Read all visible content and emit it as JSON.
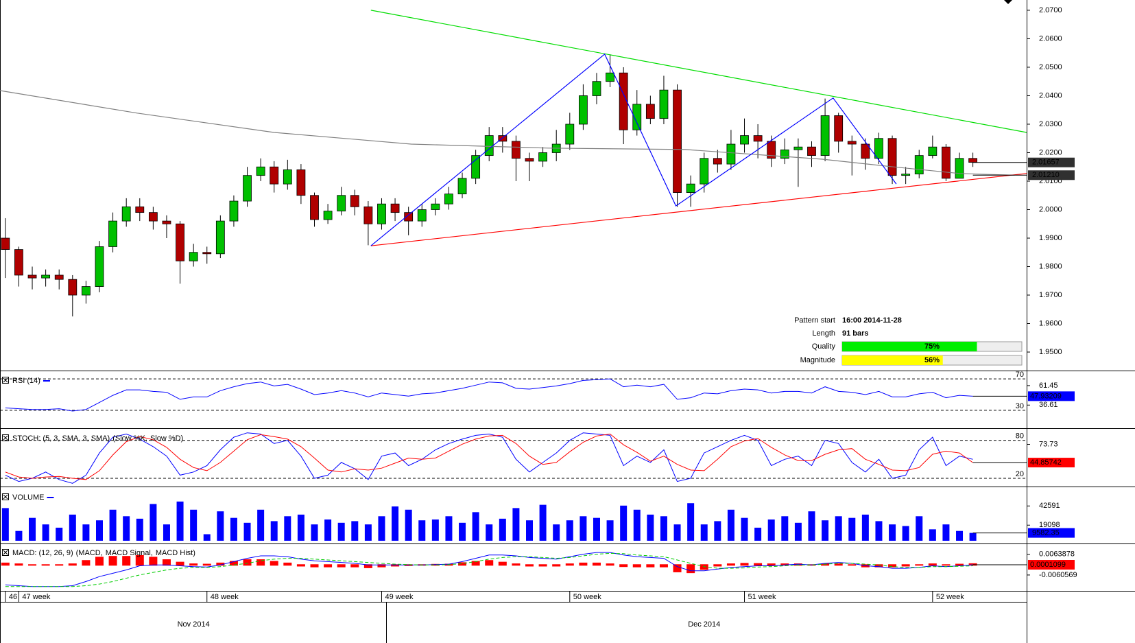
{
  "chart_data": [
    {
      "type": "candlestick",
      "categories": [
        "46",
        "47 week",
        null,
        null,
        null,
        null,
        null,
        null,
        null,
        null,
        null,
        null,
        null,
        null,
        null,
        "48 week",
        null,
        null,
        null,
        null,
        null,
        null,
        null,
        null,
        null,
        null,
        null,
        null,
        "49 week",
        null,
        null,
        null,
        null,
        null,
        null,
        null,
        null,
        null,
        null,
        null,
        null,
        null,
        "50 week",
        null,
        null,
        null,
        null,
        null,
        null,
        null,
        null,
        null,
        null,
        null,
        null,
        "51 week",
        null,
        null,
        null,
        null,
        null,
        null,
        null,
        null,
        null,
        null,
        null,
        null,
        null,
        "52 week",
        null,
        null,
        null
      ],
      "months": [
        null,
        null,
        null,
        null,
        null,
        null,
        null,
        null,
        null,
        null,
        null,
        null,
        null,
        null,
        "Nov 2014",
        null,
        null,
        null,
        null,
        null,
        null,
        null,
        null,
        null,
        null,
        null,
        null,
        null,
        null,
        null,
        null,
        null,
        null,
        null,
        null,
        null,
        null,
        null,
        null,
        null,
        null,
        null,
        null,
        null,
        null,
        null,
        null,
        null,
        null,
        null,
        null,
        null,
        "Dec 2014",
        null,
        null,
        null,
        null,
        null,
        null,
        null,
        null,
        null,
        null,
        null,
        null,
        null,
        null,
        null,
        null,
        null,
        null,
        null,
        null
      ],
      "open": [
        1.99,
        1.986,
        1.977,
        1.976,
        1.977,
        1.9755,
        1.97,
        1.973,
        1.987,
        1.996,
        2.001,
        1.999,
        1.996,
        1.995,
        1.982,
        1.985,
        1.9845,
        1.996,
        2.003,
        2.012,
        2.015,
        2.009,
        2.014,
        2.005,
        1.9965,
        1.9995,
        2.005,
        2.001,
        1.995,
        2.002,
        1.999,
        1.996,
        2.0,
        2.002,
        2.0055,
        2.011,
        2.019,
        2.026,
        2.024,
        2.018,
        2.017,
        2.02,
        2.023,
        2.03,
        2.04,
        2.045,
        2.048,
        2.028,
        2.037,
        2.032,
        2.042,
        2.006,
        2.009,
        2.018,
        2.016,
        2.023,
        2.026,
        2.024,
        2.018,
        2.021,
        2.022,
        2.019,
        2.033,
        2.024,
        2.023,
        2.018,
        2.025,
        2.012,
        2.0125,
        2.019,
        2.022,
        2.011,
        2.018
      ],
      "high": [
        1.997,
        1.987,
        1.98,
        1.979,
        1.979,
        1.977,
        1.975,
        1.989,
        1.999,
        2.004,
        2.004,
        2.001,
        1.998,
        1.996,
        1.988,
        1.987,
        1.998,
        2.005,
        2.015,
        2.018,
        2.017,
        2.0175,
        2.016,
        2.006,
        2.002,
        2.008,
        2.007,
        2.003,
        2.004,
        2.004,
        2.001,
        2.002,
        2.004,
        2.008,
        2.013,
        2.021,
        2.029,
        2.029,
        2.026,
        2.02,
        2.022,
        2.028,
        2.034,
        2.044,
        2.048,
        2.0545,
        2.05,
        2.042,
        2.04,
        2.047,
        2.044,
        2.012,
        2.02,
        2.021,
        2.028,
        2.032,
        2.03,
        2.026,
        2.025,
        2.025,
        2.024,
        2.039,
        2.034,
        2.026,
        2.025,
        2.027,
        2.026,
        2.015,
        2.021,
        2.026,
        2.023,
        2.02,
        2.02
      ],
      "low": [
        1.976,
        1.973,
        1.972,
        1.973,
        1.972,
        1.9625,
        1.967,
        1.971,
        1.985,
        1.994,
        1.996,
        1.993,
        1.99,
        1.974,
        1.98,
        1.981,
        1.983,
        1.994,
        2.001,
        2.01,
        2.006,
        2.007,
        2.002,
        1.994,
        1.995,
        1.998,
        1.998,
        1.9875,
        1.993,
        1.996,
        1.991,
        1.994,
        1.998,
        2.0,
        2.004,
        2.009,
        2.017,
        2.02,
        2.01,
        2.01,
        2.015,
        2.017,
        2.021,
        2.028,
        2.037,
        2.043,
        2.023,
        2.026,
        2.03,
        2.03,
        2.001,
        2.001,
        2.006,
        2.013,
        2.014,
        2.02,
        2.018,
        2.015,
        2.016,
        2.008,
        2.015,
        2.017,
        2.02,
        2.012,
        2.014,
        2.016,
        2.009,
        2.009,
        2.011,
        2.018,
        2.01,
        2.011,
        2.015
      ],
      "close": [
        1.986,
        1.977,
        1.976,
        1.977,
        1.9755,
        1.97,
        1.973,
        1.987,
        1.996,
        2.001,
        1.999,
        1.996,
        1.995,
        1.982,
        1.985,
        1.9845,
        1.996,
        2.003,
        2.012,
        2.015,
        2.009,
        2.014,
        2.005,
        1.9965,
        1.9995,
        2.005,
        2.001,
        1.995,
        2.002,
        1.999,
        1.996,
        2.0,
        2.002,
        2.0055,
        2.011,
        2.019,
        2.026,
        2.024,
        2.018,
        2.017,
        2.02,
        2.023,
        2.03,
        2.04,
        2.045,
        2.048,
        2.028,
        2.037,
        2.032,
        2.042,
        2.006,
        2.009,
        2.018,
        2.016,
        2.023,
        2.026,
        2.024,
        2.018,
        2.021,
        2.022,
        2.019,
        2.033,
        2.024,
        2.023,
        2.018,
        2.025,
        2.012,
        2.0125,
        2.019,
        2.022,
        2.011,
        2.018,
        2.0166
      ],
      "up_color": "#00c000",
      "down_color": "#b00000",
      "xlim": [
        -0.4,
        76
      ],
      "ylim": [
        1.9435,
        2.0736
      ],
      "yticks": [
        {
          "value": 1.95,
          "label": "1.9500"
        },
        {
          "value": 1.96,
          "label": "1.9600"
        },
        {
          "value": 1.97,
          "label": "1.9700"
        },
        {
          "value": 1.98,
          "label": "1.9800"
        },
        {
          "value": 1.99,
          "label": "1.9900"
        },
        {
          "value": 2.0,
          "label": "2.0000"
        },
        {
          "value": 2.01,
          "label": "2.0100"
        },
        {
          "value": 2.02,
          "label": "2.0200"
        },
        {
          "value": 2.03,
          "label": "2.0300"
        },
        {
          "value": 2.04,
          "label": "2.0400"
        },
        {
          "value": 2.05,
          "label": "2.0500"
        },
        {
          "value": 2.06,
          "label": "2.0600"
        },
        {
          "value": 2.07,
          "label": "2.0700"
        }
      ],
      "lines": [
        {
          "color": "#808080",
          "x": [
            -0.4,
            9.8,
            20,
            30.2,
            40.4,
            50.6,
            60.8,
            65.9,
            71,
            75.1
          ],
          "y": [
            2.0418,
            2.0339,
            2.0271,
            2.023,
            2.0216,
            2.0211,
            2.0177,
            2.0151,
            2.0127,
            2.0121
          ]
        },
        {
          "color": "#00dd00",
          "x": [
            27.2,
            76
          ],
          "y": [
            2.07,
            2.0271
          ]
        },
        {
          "color": "#ff0000",
          "x": [
            27.2,
            76
          ],
          "y": [
            1.9873,
            2.0127
          ]
        },
        {
          "color": "#0000ff",
          "x": [
            27.2,
            44.6,
            49.9,
            61.6,
            66.3
          ],
          "y": [
            1.9873,
            2.0546,
            2.0013,
            2.0392,
            2.009
          ]
        }
      ],
      "markers": [
        2.01657,
        {
          "value": 2.0121,
          "label": "2.01210"
        }
      ],
      "pattern": {
        "start": {
          "label": "Pattern start",
          "value": "16:00 2014-11-28"
        },
        "length": {
          "label": "Length",
          "value": "91 bars"
        },
        "quality": {
          "label": "Quality",
          "value": 75,
          "value_label": "75%",
          "color": "#00ee00"
        },
        "magnitude": {
          "label": "Magnitude",
          "value": 56,
          "value_label": "56%",
          "color": "#ffff00"
        },
        "lim": [
          0,
          100
        ]
      }
    },
    {
      "type": "line",
      "title": "RSI (14)",
      "color": "#0000ff",
      "values": [
        33,
        32,
        31,
        31,
        32,
        29,
        31,
        40,
        49,
        56,
        56,
        54,
        53,
        44,
        47,
        47,
        55,
        60,
        64,
        66,
        61,
        63,
        57,
        50,
        52,
        55,
        52,
        47,
        52,
        50,
        48,
        51,
        52,
        55,
        58,
        62,
        66,
        65,
        58,
        57,
        59,
        61,
        64,
        68,
        69,
        70,
        60,
        62,
        60,
        63,
        44,
        46,
        52,
        51,
        55,
        57,
        56,
        52,
        54,
        54,
        52,
        60,
        54,
        53,
        50,
        54,
        47,
        47,
        51,
        53,
        46,
        49,
        47.93209
      ],
      "ylim": [
        8,
        78
      ],
      "levels": [
        70,
        30
      ],
      "yticks": [
        36.61,
        61.45
      ]
    },
    {
      "type": "line",
      "title": "STOCH: (5, 3, SMA, 3, SMA)",
      "series": [
        {
          "name": "(Slow %K,",
          "color": "#0000ff",
          "style": "solid",
          "values": [
            25,
            15,
            20,
            30,
            18,
            12,
            25,
            60,
            85,
            90,
            82,
            70,
            55,
            25,
            30,
            40,
            65,
            85,
            92,
            90,
            75,
            80,
            55,
            20,
            25,
            45,
            35,
            18,
            55,
            60,
            40,
            50,
            65,
            75,
            82,
            88,
            90,
            85,
            50,
            30,
            45,
            60,
            80,
            92,
            90,
            88,
            40,
            55,
            45,
            65,
            15,
            20,
            60,
            70,
            80,
            88,
            80,
            40,
            50,
            55,
            40,
            80,
            75,
            45,
            30,
            50,
            20,
            25,
            65,
            85,
            40,
            55,
            50
          ]
        },
        {
          "name": "Slow %D)",
          "color": "#ff0000",
          "style": "solid",
          "values": [
            30,
            22,
            20,
            22,
            23,
            20,
            18,
            32,
            57,
            78,
            86,
            81,
            69,
            50,
            37,
            32,
            45,
            63,
            81,
            89,
            86,
            82,
            70,
            52,
            33,
            30,
            35,
            33,
            36,
            44,
            52,
            50,
            52,
            63,
            74,
            82,
            87,
            88,
            75,
            55,
            42,
            45,
            62,
            77,
            87,
            90,
            73,
            61,
            47,
            55,
            42,
            33,
            32,
            50,
            70,
            79,
            83,
            69,
            57,
            48,
            48,
            58,
            65,
            67,
            50,
            42,
            33,
            32,
            37,
            58,
            63,
            60,
            44.85742
          ]
        }
      ],
      "ylim": [
        8,
        96
      ],
      "levels": [
        80,
        20
      ],
      "yticks": [
        73.73
      ]
    },
    {
      "type": "bar",
      "title": "VOLUME",
      "color": "#0000ff",
      "values": [
        40000,
        12000,
        28000,
        20000,
        16000,
        32000,
        20000,
        25000,
        38000,
        30000,
        27000,
        45000,
        20000,
        48000,
        38000,
        8000,
        36000,
        28000,
        22000,
        38000,
        24000,
        30000,
        32000,
        20000,
        26000,
        22000,
        24000,
        20000,
        30000,
        42000,
        38000,
        25000,
        26000,
        30000,
        22000,
        35000,
        20000,
        27000,
        40000,
        25000,
        44000,
        20000,
        25000,
        30000,
        28000,
        25000,
        43000,
        38000,
        32000,
        30000,
        20000,
        46000,
        20000,
        24000,
        38000,
        28000,
        16000,
        26000,
        30000,
        22000,
        36000,
        25000,
        30000,
        28000,
        32000,
        24000,
        20000,
        18000,
        30000,
        14000,
        20000,
        12000,
        9582.35
      ],
      "ylim": [
        0,
        63000
      ],
      "yticks": [
        19098,
        42591
      ]
    },
    {
      "type": "line",
      "title": "MACD: (12, 26, 9)",
      "series": [
        {
          "name": "(MACD,",
          "color": "#0000ff",
          "style": "solid",
          "values": [
            -0.012,
            -0.0125,
            -0.013,
            -0.013,
            -0.013,
            -0.0125,
            -0.01,
            -0.007,
            -0.005,
            -0.003,
            -0.0005,
            0,
            0,
            -0.0005,
            -0.001,
            -0.0012,
            0,
            0.002,
            0.004,
            0.0055,
            0.0055,
            0.005,
            0.0035,
            0.0025,
            0.002,
            0.0015,
            0.001,
            0,
            0,
            0,
            0,
            0,
            0.0002,
            0.0005,
            0.002,
            0.004,
            0.006,
            0.006,
            0.0055,
            0.0045,
            0.004,
            0.0035,
            0.005,
            0.0065,
            0.0075,
            0.0075,
            0.006,
            0.005,
            0.0045,
            0.004,
            -0.001,
            -0.0035,
            -0.0035,
            -0.0025,
            -0.0015,
            -0.001,
            -0.0005,
            -0.0005,
            0,
            0.0005,
            0,
            0.001,
            0.0015,
            0.001,
            -0.0005,
            -0.001,
            -0.002,
            -0.002,
            -0.0015,
            -0.0005,
            -0.001,
            -0.0005,
            0.0001099
          ]
        },
        {
          "name": "MACD Signal,",
          "color": "#00cc00",
          "style": "dashed",
          "values": [
            -0.013,
            -0.013,
            -0.013,
            -0.013,
            -0.013,
            -0.013,
            -0.0125,
            -0.0115,
            -0.01,
            -0.008,
            -0.006,
            -0.0045,
            -0.003,
            -0.002,
            -0.0015,
            -0.0015,
            -0.001,
            0,
            0.001,
            0.0025,
            0.0035,
            0.004,
            0.004,
            0.0035,
            0.003,
            0.0025,
            0.002,
            0.0015,
            0.001,
            0.0005,
            0.0002,
            0,
            0,
            0.0002,
            0.0008,
            0.002,
            0.0035,
            0.0045,
            0.005,
            0.005,
            0.0045,
            0.004,
            0.0045,
            0.0055,
            0.0065,
            0.007,
            0.0068,
            0.006,
            0.0055,
            0.005,
            0.003,
            0.001,
            -0.001,
            -0.002,
            -0.002,
            -0.0018,
            -0.0012,
            -0.001,
            -0.0005,
            0,
            0,
            0.0005,
            0.001,
            0.001,
            0.0005,
            0,
            -0.001,
            -0.0015,
            -0.0015,
            -0.001,
            -0.001,
            -0.0008,
            -0.0005
          ]
        },
        {
          "name": "MACD Hist)",
          "color": "#ff0000",
          "style": "bar",
          "values": [
            0.001,
            0.0005,
            0,
            0,
            0,
            0.0005,
            0.0025,
            0.0045,
            0.005,
            0.005,
            0.0055,
            0.0045,
            0.003,
            0.0015,
            0.0005,
            0.0003,
            0.001,
            0.002,
            0.003,
            0.003,
            0.002,
            0.001,
            -0.0005,
            -0.001,
            -0.001,
            -0.001,
            -0.001,
            -0.0015,
            -0.001,
            -0.0005,
            -0.0002,
            0,
            0.0002,
            0.0003,
            0.0012,
            0.002,
            0.0025,
            0.0015,
            0.0005,
            -0.0005,
            -0.0005,
            -0.0005,
            0.0005,
            0.001,
            0.001,
            0.0005,
            -0.0008,
            -0.001,
            -0.001,
            -0.001,
            -0.004,
            -0.0045,
            -0.0025,
            -0.0005,
            0.0005,
            0.0008,
            0.0007,
            0.0005,
            0.0005,
            0.0005,
            0,
            0.0005,
            0.0005,
            0,
            -0.001,
            -0.001,
            -0.001,
            -0.0005,
            0,
            0.0005,
            0,
            0.0003,
            0.0006
          ]
        }
      ],
      "ylim": [
        -0.0152,
        0.0117
      ],
      "yticks": [
        -0.0060569,
        0.0063878
      ]
    }
  ]
}
